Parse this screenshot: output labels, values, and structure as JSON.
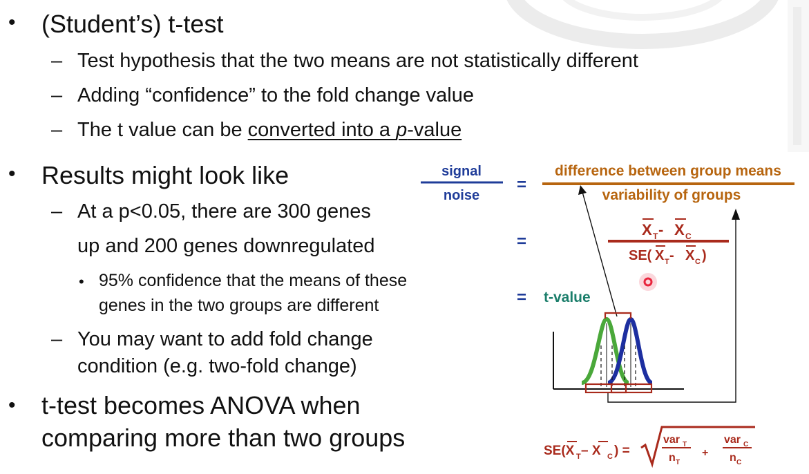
{
  "bullets": {
    "b1": "(Student’s) t-test",
    "b1_subs": [
      "Test hypothesis that the two means are not statistically different",
      "Adding “confidence” to the fold change value"
    ],
    "b1_sub3_pre": "The t value can be ",
    "b1_sub3_link_a": "converted into a ",
    "b1_sub3_link_p": "p",
    "b1_sub3_link_b": "-value",
    "b2": "Results might look like",
    "b2_sub1_line1": "At a p<0.05, there are 300 genes",
    "b2_sub1_line2": "up and 200 genes downregulated",
    "b2_sub1_sub_line1": "95% confidence that the means of these",
    "b2_sub1_sub_line2": "genes in the two groups are different",
    "b2_sub2_line1": "You may want to add fold change",
    "b2_sub2_line2": "condition (e.g. two-fold change)",
    "b3_line1": "t-test becomes ANOVA when",
    "b3_line2": "comparing more than two groups"
  },
  "figure": {
    "signal": "signal",
    "noise": "noise",
    "equals": "=",
    "numerator": "difference between group means",
    "denominator": "variability of groups",
    "xbar_t": "X",
    "sub_t": "T",
    "minus": " - ",
    "xbar_c": "X",
    "sub_c": "C",
    "se": "SE(",
    "close": ")",
    "tvalue": "t-value",
    "formula_lhs": "SE(X",
    "formula_minus": " – X",
    "formula_eq": ") =",
    "var": "var",
    "n": "n",
    "plus": "+"
  },
  "colors": {
    "signal_blue": "#1f3c99",
    "brown": "#b7650f",
    "red": "#a92a1c",
    "green": "#2e8b57",
    "curve_green": "#4aa83a",
    "curve_blue": "#1d2fa0",
    "teal": "#1b7e6b",
    "cursor": "#e8243c"
  }
}
